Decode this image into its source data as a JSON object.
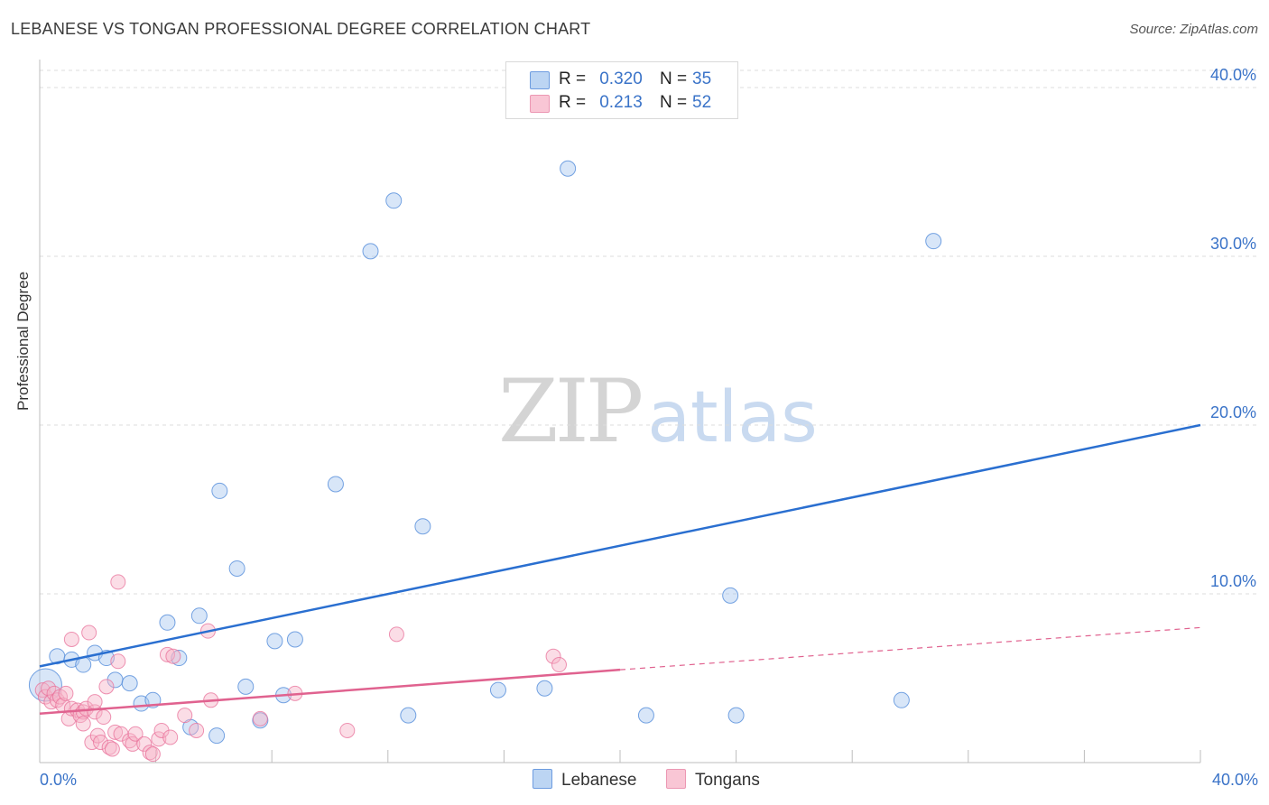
{
  "title": "LEBANESE VS TONGAN PROFESSIONAL DEGREE CORRELATION CHART",
  "source": "Source: ZipAtlas.com",
  "watermark": {
    "part1": "ZIP",
    "part2": "atlas"
  },
  "colors": {
    "lebanese": "#4a86d8",
    "lebanese_fill": "#a8c8f0",
    "tongans": "#e8709a",
    "tongans_fill": "#f6b4c8",
    "tick": "#3a73c8"
  },
  "legend_top": {
    "rows": [
      {
        "r_label": "R =",
        "r_value": "0.320",
        "n_label": "N =",
        "n_value": "35"
      },
      {
        "r_label": "R =",
        "r_value": "0.213",
        "n_label": "N =",
        "n_value": "52"
      }
    ]
  },
  "legend_bottom": {
    "lebanese": "Lebanese",
    "tongans": "Tongans"
  },
  "chart_data": {
    "type": "scatter",
    "title": "LEBANESE VS TONGAN PROFESSIONAL DEGREE CORRELATION CHART",
    "xlabel": "",
    "ylabel": "Professional Degree",
    "xlim": [
      0,
      40
    ],
    "ylim": [
      0,
      41
    ],
    "x_tick_labels": [
      "0.0%",
      "40.0%"
    ],
    "y_ticks": [
      10,
      20,
      30,
      40
    ],
    "y_tick_labels": [
      "10.0%",
      "20.0%",
      "30.0%",
      "40.0%"
    ],
    "grid": true,
    "series": [
      {
        "name": "Lebanese",
        "r": 0.32,
        "n": 35,
        "trend": {
          "x0": 0,
          "y0": 5.7,
          "x1": 40,
          "y1": 20.0
        },
        "points": [
          [
            0.2,
            4.6,
            "L"
          ],
          [
            0.6,
            6.3
          ],
          [
            1.1,
            6.1
          ],
          [
            1.5,
            5.8
          ],
          [
            1.9,
            6.5
          ],
          [
            2.3,
            6.2
          ],
          [
            2.6,
            4.9
          ],
          [
            3.1,
            4.7
          ],
          [
            3.5,
            3.5
          ],
          [
            3.9,
            3.7
          ],
          [
            4.4,
            8.3
          ],
          [
            4.8,
            6.2
          ],
          [
            5.2,
            2.1
          ],
          [
            5.5,
            8.7
          ],
          [
            6.1,
            1.6
          ],
          [
            6.2,
            16.1
          ],
          [
            6.8,
            11.5
          ],
          [
            7.1,
            4.5
          ],
          [
            7.6,
            2.5
          ],
          [
            8.1,
            7.2
          ],
          [
            8.4,
            4.0
          ],
          [
            8.8,
            7.3
          ],
          [
            10.2,
            16.5
          ],
          [
            11.4,
            30.3
          ],
          [
            12.2,
            33.3
          ],
          [
            12.7,
            2.8
          ],
          [
            13.2,
            14.0
          ],
          [
            15.8,
            4.3
          ],
          [
            17.4,
            4.4
          ],
          [
            18.2,
            35.2
          ],
          [
            20.9,
            2.8
          ],
          [
            23.8,
            9.9
          ],
          [
            24.0,
            2.8
          ],
          [
            29.7,
            3.7
          ],
          [
            30.8,
            30.9
          ]
        ]
      },
      {
        "name": "Tongans",
        "r": 0.213,
        "n": 52,
        "trend": {
          "x0": 0,
          "y0": 2.9,
          "x1": 20.0,
          "y1": 5.5,
          "dash_x1": 40,
          "dash_y1": 8.0
        },
        "points": [
          [
            0.1,
            4.3
          ],
          [
            0.2,
            3.9
          ],
          [
            0.3,
            4.4
          ],
          [
            0.4,
            3.6
          ],
          [
            0.5,
            4.1
          ],
          [
            0.6,
            3.7
          ],
          [
            0.7,
            3.9
          ],
          [
            0.8,
            3.4
          ],
          [
            0.9,
            4.1
          ],
          [
            1.0,
            2.6
          ],
          [
            1.1,
            3.2
          ],
          [
            1.1,
            7.3
          ],
          [
            1.3,
            3.1
          ],
          [
            1.4,
            2.8
          ],
          [
            1.5,
            3.0
          ],
          [
            1.5,
            2.3
          ],
          [
            1.6,
            3.2
          ],
          [
            1.7,
            7.7
          ],
          [
            1.8,
            1.2
          ],
          [
            1.9,
            3.0
          ],
          [
            1.9,
            3.6
          ],
          [
            2.0,
            1.6
          ],
          [
            2.1,
            1.2
          ],
          [
            2.2,
            2.7
          ],
          [
            2.3,
            4.5
          ],
          [
            2.4,
            0.9
          ],
          [
            2.5,
            0.8
          ],
          [
            2.6,
            1.8
          ],
          [
            2.7,
            6.0
          ],
          [
            2.8,
            1.7
          ],
          [
            2.7,
            10.7
          ],
          [
            3.1,
            1.3
          ],
          [
            3.2,
            1.1
          ],
          [
            3.3,
            1.7
          ],
          [
            3.6,
            1.1
          ],
          [
            3.8,
            0.6
          ],
          [
            3.9,
            0.5
          ],
          [
            4.1,
            1.4
          ],
          [
            4.2,
            1.9
          ],
          [
            4.4,
            6.4
          ],
          [
            4.5,
            1.5
          ],
          [
            4.6,
            6.3
          ],
          [
            5.0,
            2.8
          ],
          [
            5.4,
            1.9
          ],
          [
            5.8,
            7.8
          ],
          [
            5.9,
            3.7
          ],
          [
            7.6,
            2.6
          ],
          [
            8.8,
            4.1
          ],
          [
            10.6,
            1.9
          ],
          [
            12.3,
            7.6
          ],
          [
            17.7,
            6.3
          ],
          [
            17.9,
            5.8
          ]
        ]
      }
    ]
  }
}
